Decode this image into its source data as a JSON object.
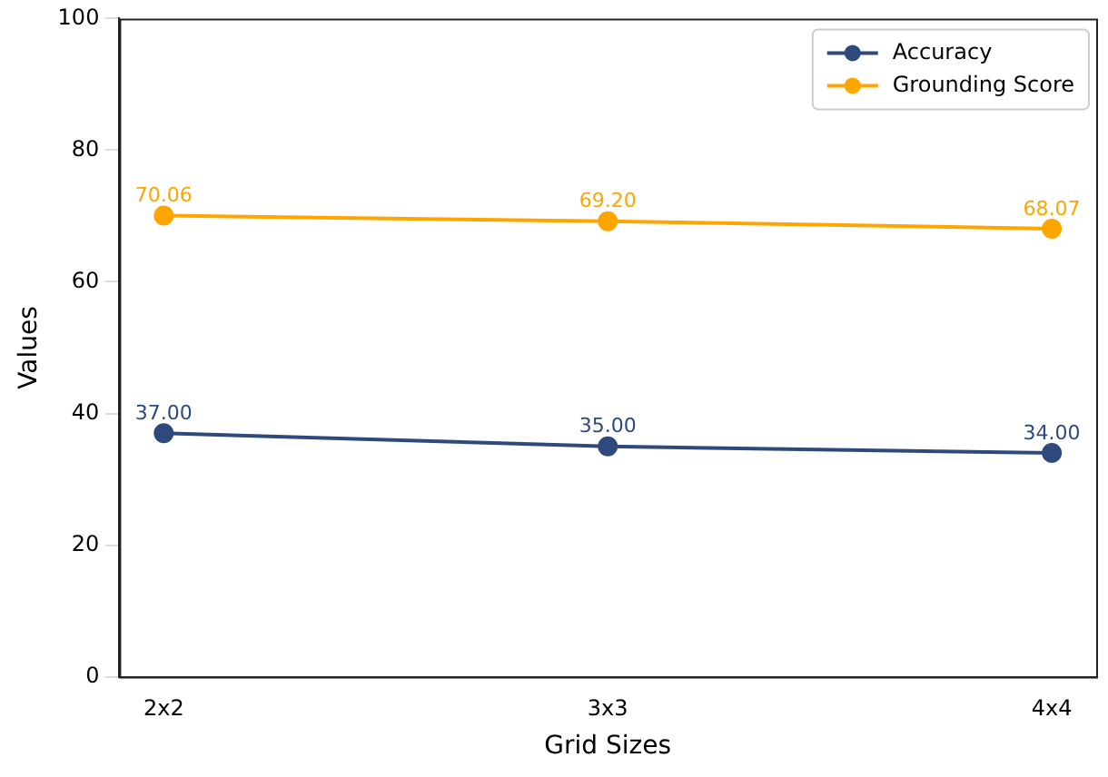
{
  "chart_data": {
    "type": "line",
    "xlabel": "Grid Sizes",
    "ylabel": "Values",
    "categories": [
      "2x2",
      "3x3",
      "4x4"
    ],
    "series": [
      {
        "name": "Accuracy",
        "color": "#2e4a7d",
        "values": [
          37,
          35,
          34
        ],
        "value_labels": [
          "37.00",
          "35.00",
          "34.00"
        ]
      },
      {
        "name": "Grounding Score",
        "color": "#ffa500",
        "values": [
          70.06,
          69.2,
          68.07
        ],
        "value_labels": [
          "70.06",
          "69.20",
          "68.07"
        ]
      }
    ],
    "ylim": [
      0,
      100
    ],
    "yticks": [
      0,
      20,
      40,
      60,
      80,
      100
    ],
    "grid": false,
    "legend": "top right",
    "marker": "circle",
    "line_style": "solid"
  }
}
